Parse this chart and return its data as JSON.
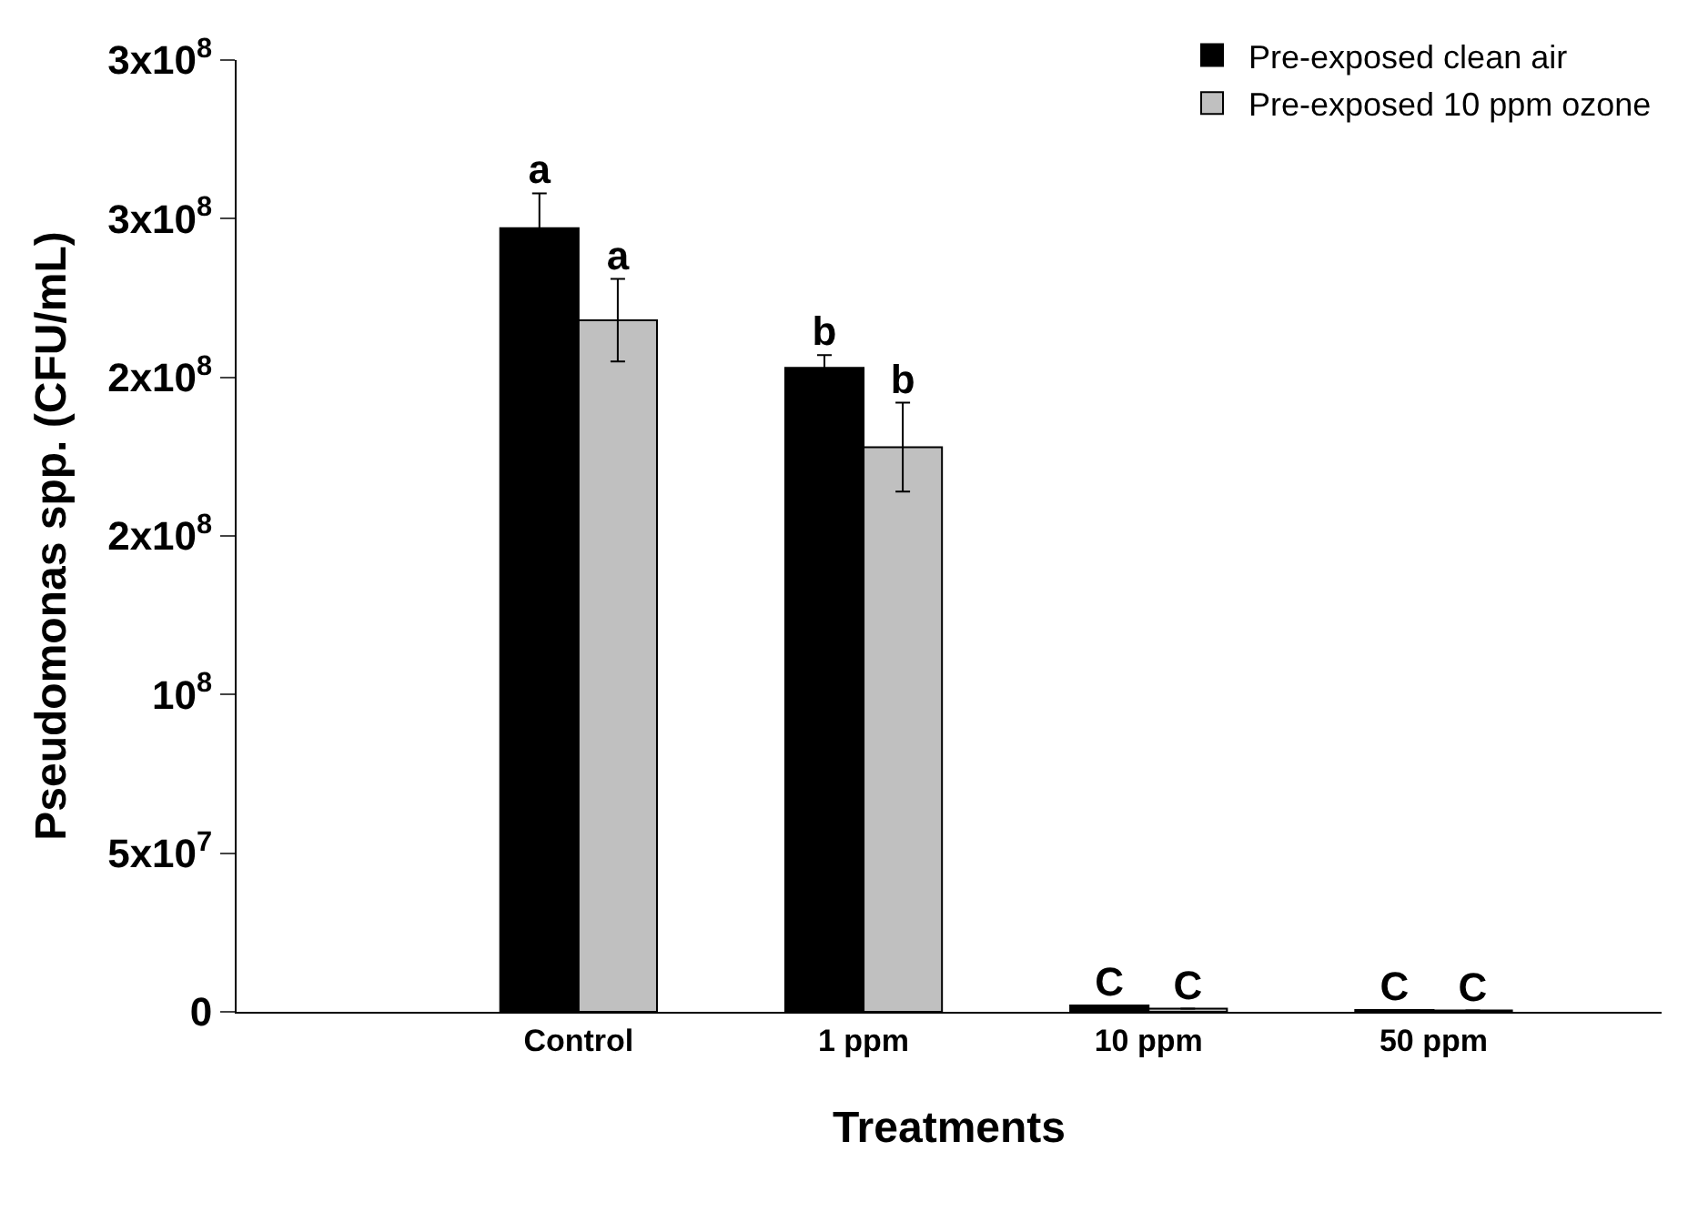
{
  "chart_data": {
    "type": "bar",
    "categories": [
      "Control",
      "1 ppm",
      "10 ppm",
      "50 ppm"
    ],
    "series": [
      {
        "name": "Pre-exposed clean air",
        "color": "#000000",
        "values": [
          247000000,
          203000000,
          2000000,
          600000
        ],
        "errors": [
          11000000,
          4000000,
          null,
          null
        ],
        "value_labels": [
          "a",
          "b",
          "C",
          "C"
        ]
      },
      {
        "name": "Pre-exposed 10 ppm ozone",
        "color": "#c0c0c0",
        "values": [
          218000000,
          178000000,
          1000000,
          400000
        ],
        "errors": [
          13000000,
          14000000,
          null,
          null
        ],
        "value_labels": [
          "a",
          "b",
          "C",
          "C"
        ]
      }
    ],
    "xlabel": "Treatments",
    "ylabel": "Pseudomonas spp. (CFU/mL)",
    "ylim": [
      0,
      300000000
    ],
    "yticks": [
      0,
      {
        "value": 50000000,
        "label": "5x10$^{7}$"
      },
      {
        "value": 100000000,
        "label": "10$^{8}$"
      },
      {
        "value": 150000000,
        "label": "2x10$^{8}$"
      },
      {
        "value": 200000000,
        "label": "2x10$^{8}$"
      },
      {
        "value": 250000000,
        "label": "3x10$^{8}$"
      },
      {
        "value": 300000000,
        "label": "3x10$^{8}$"
      }
    ],
    "legend": "top right"
  }
}
